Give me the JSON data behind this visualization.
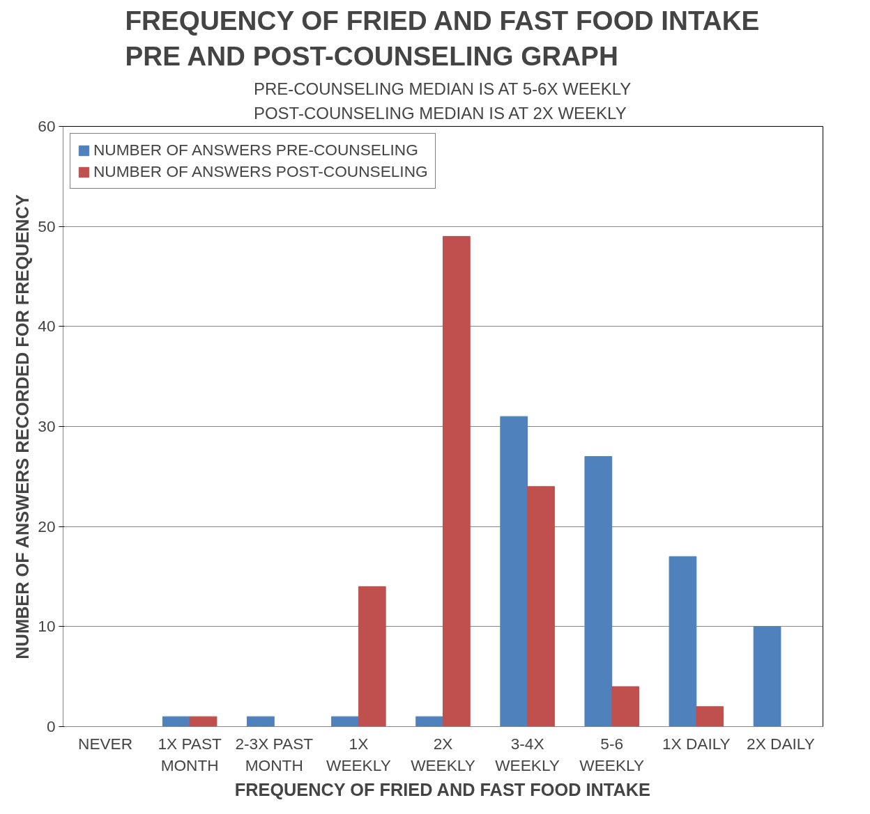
{
  "chart_data": {
    "type": "bar",
    "title": "FREQUENCY OF FRIED AND FAST FOOD INTAKE\nPRE AND POST-COUNSELING GRAPH",
    "subtitle": "PRE-COUNSELING MEDIAN IS AT 5-6X WEEKLY\nPOST-COUNSELING MEDIAN IS AT 2X WEEKLY",
    "xlabel": "FREQUENCY OF FRIED AND FAST FOOD INTAKE",
    "ylabel": "NUMBER OF ANSWERS RECORDED FOR FREQUENCY",
    "categories": [
      "NEVER",
      "1X PAST\nMONTH",
      "2-3X PAST\nMONTH",
      "1X\nWEEKLY",
      "2X\nWEEKLY",
      "3-4X\nWEEKLY",
      "5-6\nWEEKLY",
      "1X DAILY",
      "2X DAILY"
    ],
    "series": [
      {
        "name": "NUMBER OF ANSWERS PRE-COUNSELING",
        "color": "#4f81bd",
        "values": [
          0,
          1,
          1,
          1,
          1,
          31,
          27,
          17,
          10
        ]
      },
      {
        "name": "NUMBER OF ANSWERS POST-COUNSELING",
        "color": "#c0504d",
        "values": [
          0,
          1,
          0,
          14,
          49,
          24,
          4,
          2,
          0
        ]
      }
    ],
    "ylim": [
      0,
      60
    ],
    "yticks": [
      0,
      10,
      20,
      30,
      40,
      50,
      60
    ],
    "grid": "y",
    "legend": "top left"
  }
}
